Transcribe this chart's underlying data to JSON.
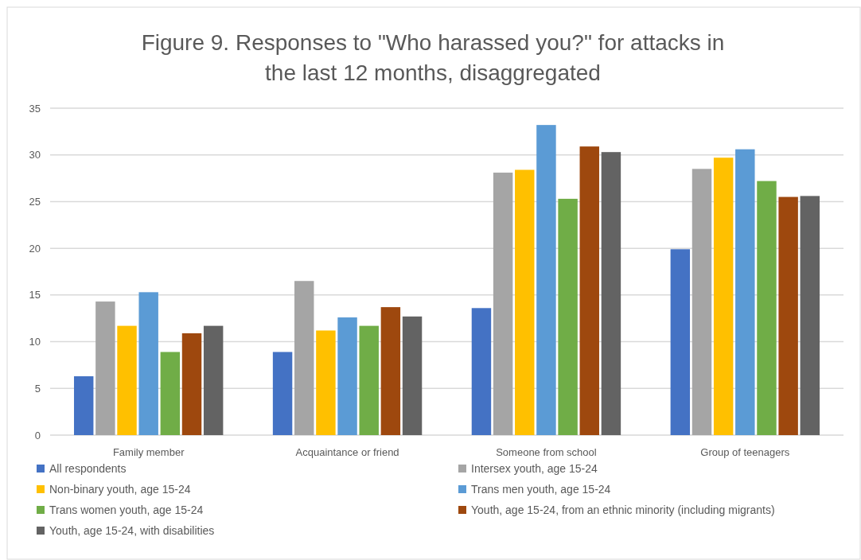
{
  "chart_data": {
    "type": "bar",
    "title": "Figure 9. Responses to \"Who harassed you?\" for attacks in the last 12 months, disaggregated",
    "categories": [
      "Family member",
      "Acquaintance or friend",
      "Someone from school",
      "Group of teenagers"
    ],
    "series": [
      {
        "name": "All respondents",
        "color": "#4472c4",
        "values": [
          6.3,
          8.9,
          13.6,
          19.9
        ]
      },
      {
        "name": "Intersex youth, age 15-24",
        "color": "#a5a5a5",
        "values": [
          14.3,
          16.5,
          28.1,
          28.5
        ]
      },
      {
        "name": "Non-binary youth, age 15-24",
        "color": "#ffc000",
        "values": [
          11.7,
          11.2,
          28.4,
          29.7
        ]
      },
      {
        "name": "Trans men youth, age 15-24",
        "color": "#5b9bd5",
        "values": [
          15.3,
          12.6,
          33.2,
          30.6
        ]
      },
      {
        "name": "Trans women youth, age 15-24",
        "color": "#70ad47",
        "values": [
          8.9,
          11.7,
          25.3,
          27.2
        ]
      },
      {
        "name": "Youth, age 15-24, from an ethnic minority (including migrants)",
        "color": "#9e480e",
        "values": [
          10.9,
          13.7,
          30.9,
          25.5
        ]
      },
      {
        "name": "Youth, age 15-24, with disabilities",
        "color": "#636363",
        "values": [
          11.7,
          12.7,
          30.3,
          25.6
        ]
      }
    ],
    "ylim": [
      0,
      35
    ],
    "yticks": [
      0,
      5,
      10,
      15,
      20,
      25,
      30,
      35
    ],
    "grid": "y",
    "legend": "bottom"
  }
}
